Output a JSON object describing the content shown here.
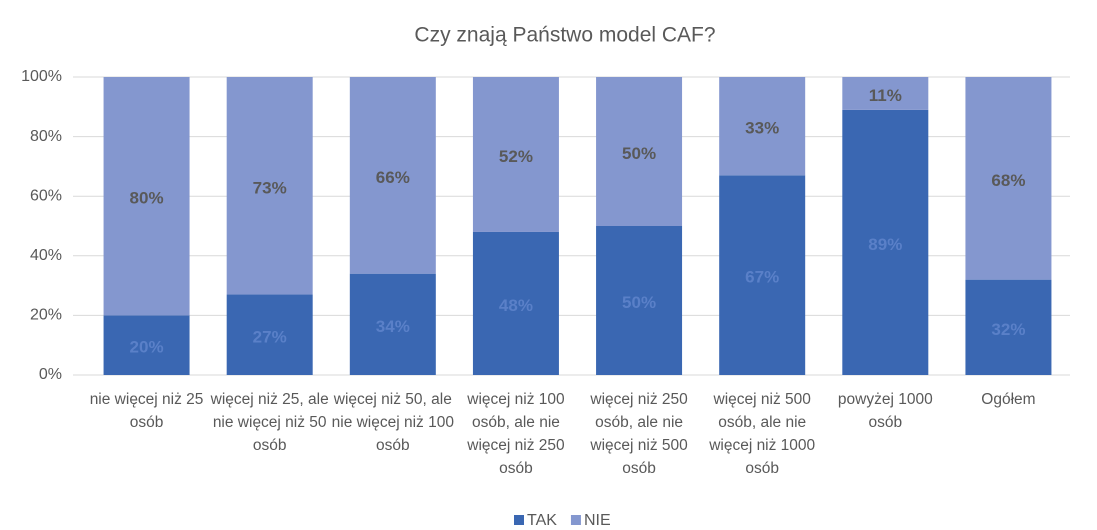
{
  "chart_data": {
    "type": "stacked_bar",
    "title": "Czy znają Państwo model CAF?",
    "categories": [
      "nie więcej niż 25 osób",
      "więcej niż 25, ale nie więcej niż 50 osób",
      "więcej niż 50, ale nie więcej niż 100 osób",
      "więcej niż 100 osób, ale nie więcej niż 250 osób",
      "więcej niż 250 osób, ale nie więcej niż 500 osób",
      "więcej niż 500 osób, ale nie więcej niż 1000 osób",
      "powyżej 1000 osób",
      "Ogółem"
    ],
    "series": [
      {
        "name": "TAK",
        "color": "#3a67b2",
        "label_color": "#5a80c8",
        "values": [
          20,
          27,
          34,
          48,
          50,
          67,
          89,
          32
        ],
        "value_labels": [
          "20%",
          "27%",
          "34%",
          "48%",
          "50%",
          "67%",
          "89%",
          "32%"
        ]
      },
      {
        "name": "NIE",
        "color": "#8497cf",
        "label_color": "#595959",
        "values": [
          80,
          73,
          66,
          52,
          50,
          33,
          11,
          68
        ],
        "value_labels": [
          "80%",
          "73%",
          "66%",
          "52%",
          "50%",
          "33%",
          "11%",
          "68%"
        ]
      }
    ],
    "ylim": [
      0,
      100
    ],
    "yticks": [
      {
        "value": 0,
        "label": "0%"
      },
      {
        "value": 20,
        "label": "20%"
      },
      {
        "value": 40,
        "label": "40%"
      },
      {
        "value": 60,
        "label": "60%"
      },
      {
        "value": 80,
        "label": "80%"
      },
      {
        "value": 100,
        "label": "100%"
      }
    ],
    "grid": true,
    "legend": "bottom"
  }
}
